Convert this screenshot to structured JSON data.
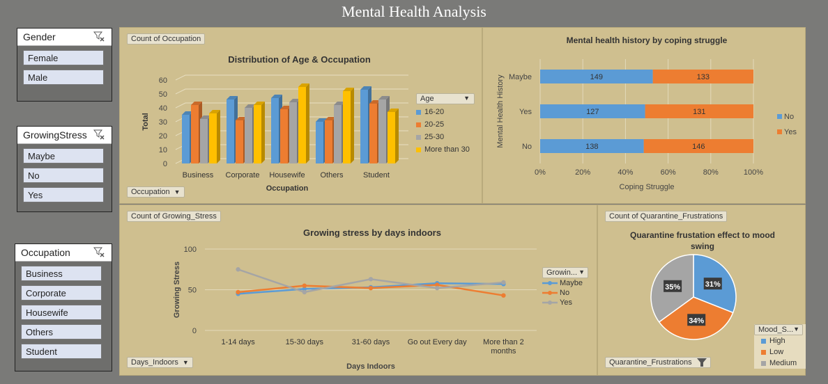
{
  "title": "Mental Health Analysis",
  "colors": {
    "blue": "#5b9bd5",
    "orange": "#ed7d31",
    "gray": "#a5a5a5",
    "yellow": "#ffc000"
  },
  "slicers": {
    "gender": {
      "label": "Gender",
      "items": [
        "Female",
        "Male"
      ]
    },
    "growing_stress": {
      "label": "GrowingStress",
      "items": [
        "Maybe",
        "No",
        "Yes"
      ]
    },
    "occupation": {
      "label": "Occupation",
      "items": [
        "Business",
        "Corporate",
        "Housewife",
        "Others",
        "Student"
      ]
    }
  },
  "panel_age": {
    "field_button": "Count of Occupation",
    "axis_button": "Occupation",
    "legend_button": "Age"
  },
  "panel_history": {},
  "panel_stress": {
    "field_button": "Count of Growing_Stress",
    "axis_button": "Days_Indoors",
    "legend_button": "Growin..."
  },
  "panel_pie": {
    "field_button": "Count of Quarantine_Frustrations",
    "filter_button": "Quarantine_Frustrations",
    "legend_button": "Mood_S..."
  },
  "chart_data": [
    {
      "type": "bar",
      "title": "Distribution of Age & Occupation",
      "xlabel": "Occupation",
      "ylabel": "Total",
      "ylim": [
        0,
        60
      ],
      "yticks": [
        0,
        10,
        20,
        30,
        40,
        50,
        60
      ],
      "categories": [
        "Business",
        "Corporate",
        "Housewife",
        "Others",
        "Student"
      ],
      "legend_title": "Age",
      "series": [
        {
          "name": "16-20",
          "values": [
            35,
            46,
            47,
            30,
            53
          ]
        },
        {
          "name": "20-25",
          "values": [
            42,
            31,
            39,
            31,
            43
          ]
        },
        {
          "name": "25-30",
          "values": [
            32,
            40,
            44,
            42,
            46
          ]
        },
        {
          "name": "More than 30",
          "values": [
            36,
            42,
            55,
            52,
            37
          ]
        }
      ]
    },
    {
      "type": "bar",
      "orientation": "horizontal-stacked-100",
      "title": "Mental health history by coping struggle",
      "xlabel": "Coping Struggle",
      "ylabel": "Mental Health History",
      "categories": [
        "Maybe",
        "Yes",
        "No"
      ],
      "xticks": [
        "0%",
        "20%",
        "40%",
        "60%",
        "80%",
        "100%"
      ],
      "series": [
        {
          "name": "No",
          "values": [
            149,
            127,
            138
          ]
        },
        {
          "name": "Yes",
          "values": [
            133,
            131,
            146
          ]
        }
      ]
    },
    {
      "type": "line",
      "title": "Growing stress by days indoors",
      "xlabel": "Days Indoors",
      "ylabel": "Growing Stress",
      "ylim": [
        0,
        100
      ],
      "yticks": [
        0,
        50,
        100
      ],
      "categories": [
        "1-14 days",
        "15-30 days",
        "31-60 days",
        "Go out Every day",
        "More than 2 months"
      ],
      "series": [
        {
          "name": "Maybe",
          "values": [
            45,
            51,
            53,
            58,
            57
          ]
        },
        {
          "name": "No",
          "values": [
            47,
            55,
            52,
            56,
            43
          ]
        },
        {
          "name": "Yes",
          "values": [
            75,
            47,
            63,
            52,
            59
          ]
        }
      ]
    },
    {
      "type": "pie",
      "title": "Quarantine frustation effect to mood swing",
      "categories": [
        "High",
        "Low",
        "Medium"
      ],
      "values": [
        31,
        34,
        35
      ],
      "labels": [
        "31%",
        "34%",
        "35%"
      ]
    }
  ]
}
